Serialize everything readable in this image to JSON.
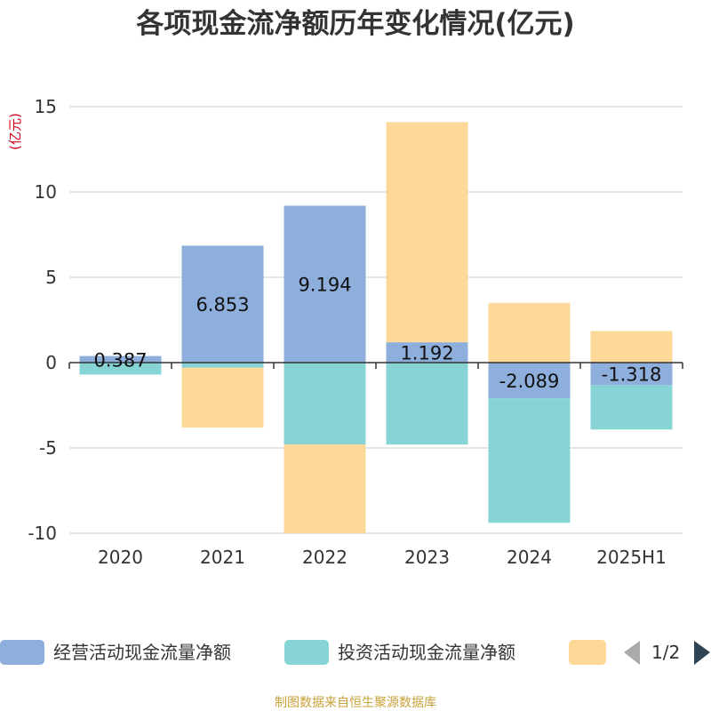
{
  "chart_data": {
    "type": "bar",
    "stacked": true,
    "title": "各项现金流净额历年变化情况(亿元)",
    "ylabel": "(亿元)",
    "ylim": [
      -10,
      15
    ],
    "yticks": [
      15,
      10,
      5,
      0,
      -5,
      -10
    ],
    "grid": true,
    "categories": [
      "2020",
      "2021",
      "2022",
      "2023",
      "2024",
      "2025H1"
    ],
    "series": [
      {
        "name": "经营活动现金流量净额",
        "color": "#8eaedb",
        "values": [
          0.387,
          6.853,
          9.194,
          1.192,
          -2.089,
          -1.318
        ],
        "labels": [
          "0.387",
          "6.853",
          "9.194",
          "1.192",
          "-2.089",
          "-1.318"
        ]
      },
      {
        "name": "投资活动现金流量净额",
        "color": "#87d4d6",
        "values": [
          -0.7,
          -0.3,
          -4.8,
          -4.8,
          -7.3,
          -2.6
        ]
      },
      {
        "name": "",
        "color": "#fdd899",
        "values": [
          0,
          -3.5,
          -5.2,
          12.9,
          3.5,
          1.85
        ]
      }
    ],
    "legend": {
      "placement": "bottom",
      "page": "1/2"
    }
  },
  "source": "制图数据来自恒生聚源数据库"
}
